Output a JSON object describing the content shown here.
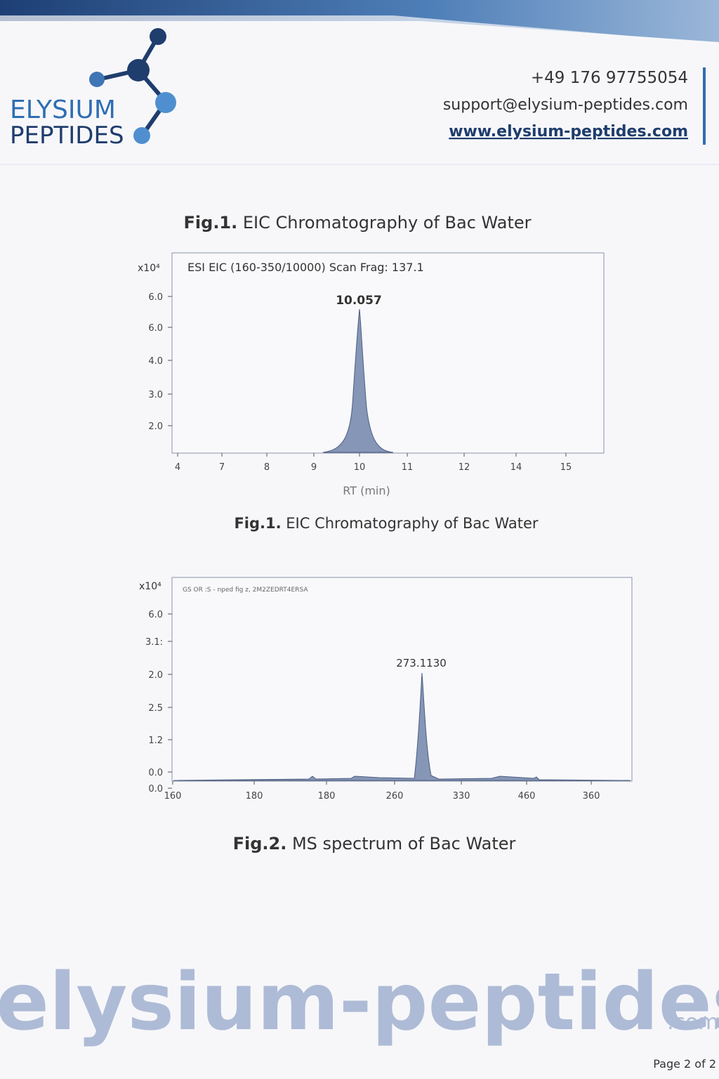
{
  "header": {
    "company_line1": "ELYSIUM",
    "company_line2": "PEPTIDES",
    "phone": "+49 176 97755054",
    "email": "support@elysium-peptides.com",
    "website": "www.elysium-peptides.com"
  },
  "figure1": {
    "title_label": "Fig.1.",
    "title_text": "EIC Chromatography of Bac Water",
    "y_multiplier": "x10⁴",
    "plot_label": "ESI EIC (160-350/10000) Scan Frag: 137.1",
    "y_tick_labels": [
      "6.0",
      "6.0",
      "4.0",
      "3.0",
      "2.0"
    ],
    "x_tick_labels": [
      "4",
      "7",
      "8",
      "9",
      "10",
      "11",
      "12",
      "14",
      "15"
    ],
    "x_axis_label": "RT (min)",
    "peak_label": "10.057",
    "caption_label": "Fig.1.",
    "caption_text": "EIC Chromatography of Bac Water"
  },
  "figure2": {
    "y_multiplier": "x10⁴",
    "plot_label": "GS OR :S - nped fig z, 2M2ZEDRT4ERSA",
    "y_tick_labels": [
      "6.0",
      "3.1:",
      "2.0",
      "2.5",
      "1.2",
      "0.0",
      "0.0"
    ],
    "x_tick_labels": [
      "160",
      "180",
      "180",
      "260",
      "330",
      "460",
      "360"
    ],
    "peak_label": "273.1130",
    "caption_label": "Fig.2.",
    "caption_text": "MS spectrum of Bac Water"
  },
  "watermark": {
    "text": "elysium-peptides",
    "suffix": ".com"
  },
  "footer": {
    "page": "Page 2 of 2"
  }
}
